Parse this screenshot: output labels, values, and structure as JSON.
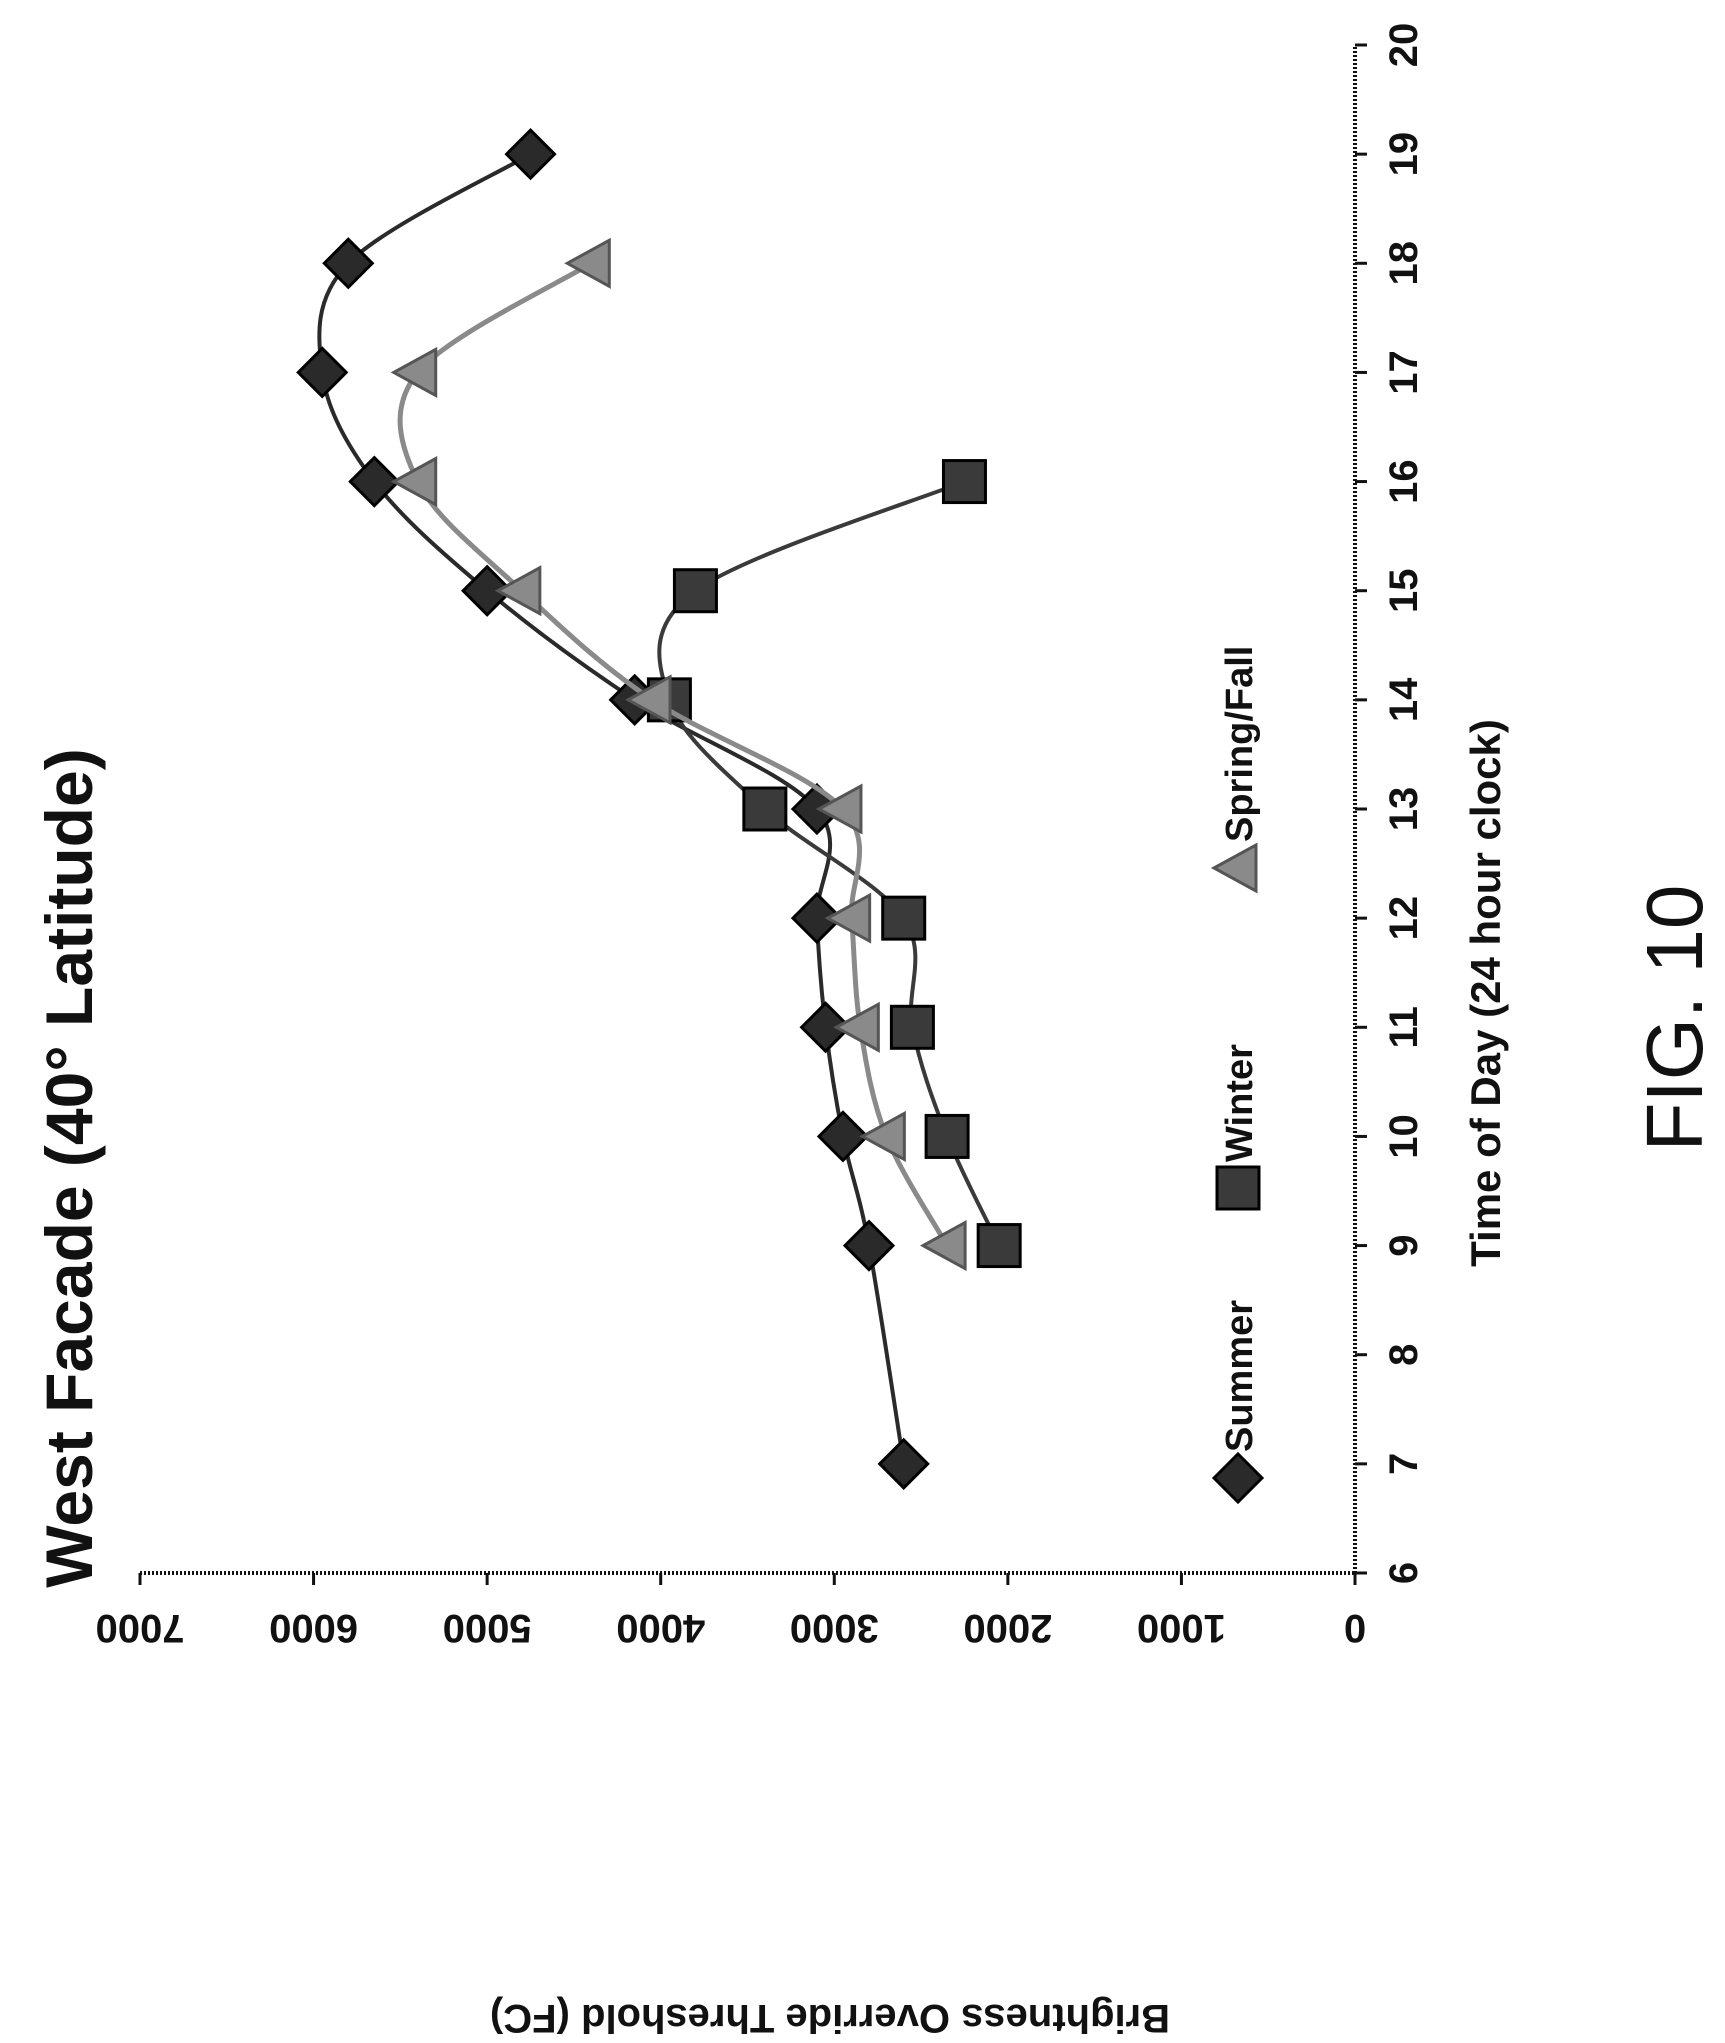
{
  "figure_caption": "FIG. 10",
  "colors": {
    "ink": "#111111",
    "summer": "#2a2a2a",
    "winter": "#3a3a3a",
    "spring_fall": "#8a8a8a"
  },
  "chart_data": {
    "type": "line",
    "title": "West Facade (40° Latitude)",
    "xlabel": "Time of Day (24 hour clock)",
    "ylabel": "Brightness Override Threshold (FC)",
    "xlim": [
      6,
      20
    ],
    "ylim": [
      0,
      7000
    ],
    "x_ticks": [
      6,
      7,
      8,
      9,
      10,
      11,
      12,
      13,
      14,
      15,
      16,
      17,
      18,
      19,
      20
    ],
    "y_ticks": [
      0,
      1000,
      2000,
      3000,
      4000,
      5000,
      6000,
      7000
    ],
    "grid": false,
    "legend_position": "top-left",
    "rotated": "90deg counter-clockwise",
    "series": [
      {
        "name": "Summer",
        "marker": "diamond",
        "x": [
          7,
          9,
          10,
          11,
          12,
          13,
          14,
          15,
          16,
          17,
          18,
          19
        ],
        "y": [
          2600,
          2800,
          2950,
          3050,
          3100,
          3100,
          4150,
          5000,
          5650,
          5950,
          5800,
          4750
        ]
      },
      {
        "name": "Winter",
        "marker": "square",
        "x": [
          9,
          10,
          11,
          12,
          13,
          14,
          15,
          16
        ],
        "y": [
          2050,
          2350,
          2550,
          2600,
          3400,
          3950,
          3800,
          2250
        ]
      },
      {
        "name": "Spring/Fall",
        "marker": "triangle",
        "x": [
          9,
          10,
          11,
          12,
          13,
          14,
          15,
          16,
          17,
          18
        ],
        "y": [
          2350,
          2700,
          2850,
          2900,
          2950,
          4050,
          4800,
          5400,
          5400,
          4400
        ]
      }
    ]
  }
}
